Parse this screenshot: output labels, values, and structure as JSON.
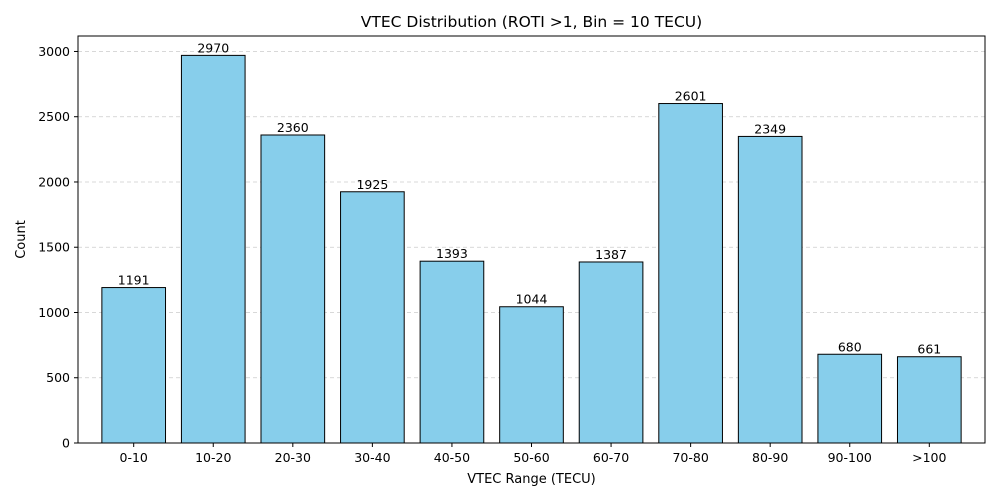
{
  "chart_data": {
    "type": "bar",
    "title": "VTEC Distribution (ROTI >1, Bin = 10 TECU)",
    "xlabel": "VTEC Range (TECU)",
    "ylabel": "Count",
    "categories": [
      "0-10",
      "10-20",
      "20-30",
      "30-40",
      "40-50",
      "50-60",
      "60-70",
      "70-80",
      "80-90",
      "90-100",
      ">100"
    ],
    "values": [
      1191,
      2970,
      2360,
      1925,
      1393,
      1044,
      1387,
      2601,
      2349,
      680,
      661
    ],
    "ylim": [
      0,
      3118.5
    ],
    "yticks": [
      0,
      500,
      1000,
      1500,
      2000,
      2500,
      3000
    ],
    "grid": "y-dashed",
    "bar_color": "#87ceeb",
    "bar_edge_color": "#000000",
    "grid_color": "#cccccc"
  }
}
